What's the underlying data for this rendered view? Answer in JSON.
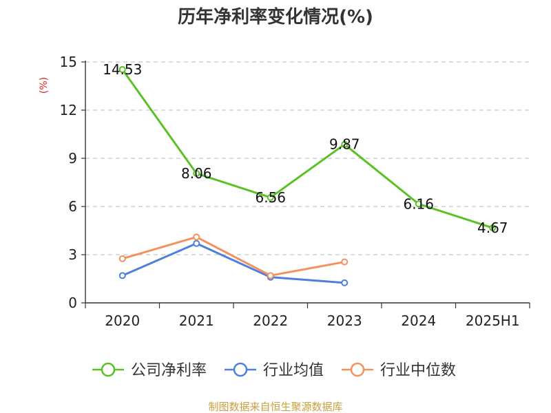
{
  "chart_data": {
    "type": "line",
    "title": "历年净利率变化情况(%)",
    "ylabel": "(%)",
    "categories": [
      "2020",
      "2021",
      "2022",
      "2023",
      "2024",
      "2025H1"
    ],
    "ylim": [
      0,
      15
    ],
    "yticks": [
      0,
      3,
      6,
      9,
      12,
      15
    ],
    "grid": true,
    "legend_position": "bottom",
    "series": [
      {
        "name": "公司净利率",
        "color": "#5ac124",
        "values": [
          14.53,
          8.06,
          6.56,
          9.87,
          6.16,
          4.67
        ],
        "labels": [
          "14.53",
          "8.06",
          "6.56",
          "9.87",
          "6.16",
          "4.67"
        ]
      },
      {
        "name": "行业均值",
        "color": "#4f7fde",
        "values": [
          1.7,
          3.7,
          1.6,
          1.25,
          null,
          null
        ]
      },
      {
        "name": "行业中位数",
        "color": "#f4915c",
        "values": [
          2.75,
          4.1,
          1.7,
          2.55,
          null,
          null
        ]
      }
    ],
    "ylabel_color": "#e02020",
    "source": "制图数据来自恒生聚源数据库",
    "source_color": "#c8a040"
  }
}
